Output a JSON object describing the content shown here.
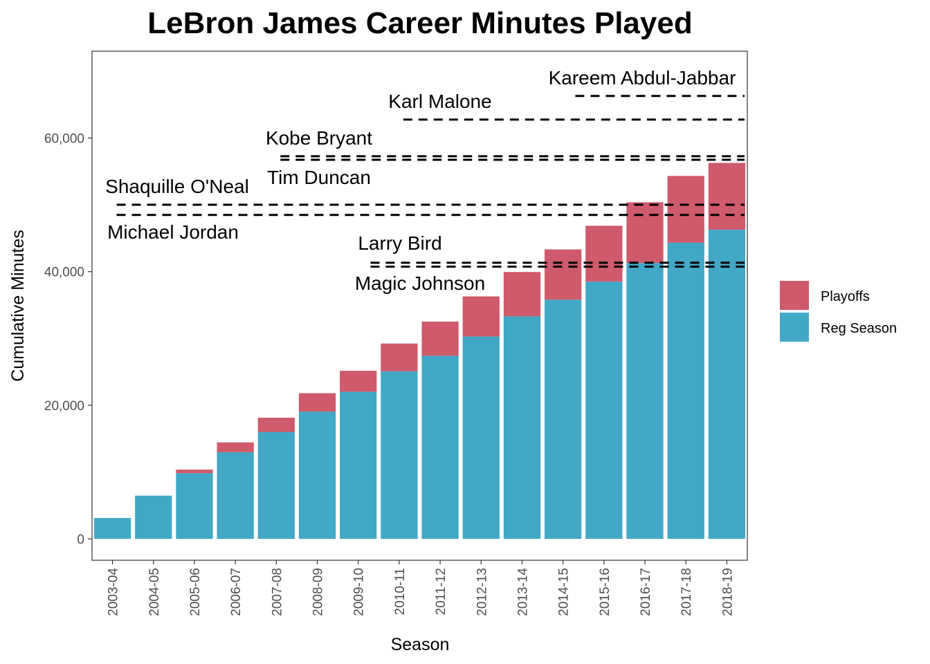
{
  "chart_data": {
    "type": "bar",
    "stacked": true,
    "title": "LeBron James Career Minutes Played",
    "xlabel": "Season",
    "ylabel": "Cumulative Minutes",
    "categories": [
      "2003-04",
      "2004-05",
      "2005-06",
      "2006-07",
      "2007-08",
      "2008-09",
      "2009-10",
      "2010-11",
      "2011-12",
      "2012-13",
      "2013-14",
      "2014-15",
      "2015-16",
      "2016-17",
      "2017-18",
      "2018-19"
    ],
    "series": [
      {
        "name": "Reg Season",
        "color": "#41A8C6",
        "values": [
          3122,
          6470,
          9831,
          12970,
          16000,
          19054,
          22020,
          25084,
          27410,
          30287,
          33307,
          35800,
          38509,
          41302,
          44328,
          46280
        ]
      },
      {
        "name": "Playoffs",
        "color": "#CF5A6B",
        "values": [
          0,
          0,
          537,
          1474,
          2140,
          2750,
          3140,
          4160,
          5110,
          6000,
          6640,
          7530,
          8360,
          9090,
          10000,
          10000
        ]
      }
    ],
    "ylim": [
      -3200,
      73000
    ],
    "yticks": [
      0,
      20000,
      40000,
      60000
    ],
    "ytick_labels": [
      "0",
      "20,000",
      "40,000",
      "60,000"
    ],
    "legend_position": "right",
    "legend_order": [
      "Playoffs",
      "Reg Season"
    ],
    "reference_lines": [
      {
        "player": "Kareem Abdul-Jabbar",
        "value": 66297,
        "start_index": 11.2
      },
      {
        "player": "Karl Malone",
        "value": 62759,
        "start_index": 7.0
      },
      {
        "player": "Kobe Bryant",
        "value": 57278,
        "start_index": 4.0
      },
      {
        "player": "Tim Duncan",
        "value": 56743,
        "start_index": 4.0
      },
      {
        "player": "Shaquille O'Neal",
        "value": 50016,
        "start_index": 0.0
      },
      {
        "player": "Michael Jordan",
        "value": 48485,
        "start_index": 0.0
      },
      {
        "player": "Larry Bird",
        "value": 41329,
        "start_index": 6.2
      },
      {
        "player": "Magic Johnson",
        "value": 40748,
        "start_index": 6.2
      }
    ]
  }
}
